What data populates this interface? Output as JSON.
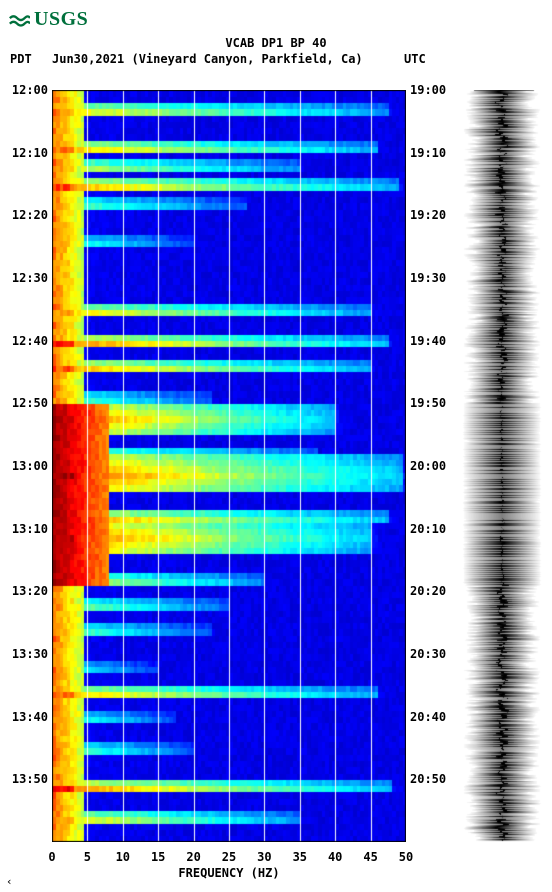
{
  "logo": {
    "text": "USGS",
    "color": "#00703c"
  },
  "title": "VCAB DP1 BP 40",
  "subtitle": {
    "pdt_label": "PDT",
    "date_text": "Jun30,2021 (Vineyard Canyon, Parkfield, Ca)",
    "utc_label": "UTC"
  },
  "spectrogram": {
    "type": "spectrogram",
    "xlabel": "FREQUENCY (HZ)",
    "xlim": [
      0,
      50
    ],
    "xticks": [
      0,
      5,
      10,
      15,
      20,
      25,
      30,
      35,
      40,
      45,
      50
    ],
    "left_ticks": [
      "12:00",
      "12:10",
      "12:20",
      "12:30",
      "12:40",
      "12:50",
      "13:00",
      "13:10",
      "13:20",
      "13:30",
      "13:40",
      "13:50"
    ],
    "right_ticks": [
      "19:00",
      "19:10",
      "19:20",
      "19:30",
      "19:40",
      "19:50",
      "20:00",
      "20:10",
      "20:20",
      "20:30",
      "20:40",
      "20:50"
    ],
    "time_rows": 120,
    "grid_color": "#ffffff",
    "background_color": "#0000aa",
    "colormap": {
      "stops": [
        [
          0.0,
          "#000080"
        ],
        [
          0.15,
          "#0000ff"
        ],
        [
          0.3,
          "#0080ff"
        ],
        [
          0.45,
          "#00ffff"
        ],
        [
          0.6,
          "#80ff80"
        ],
        [
          0.72,
          "#ffff00"
        ],
        [
          0.85,
          "#ff8000"
        ],
        [
          0.92,
          "#ff0000"
        ],
        [
          1.0,
          "#800000"
        ]
      ]
    },
    "events": [
      {
        "row": 3,
        "intensity": 0.8,
        "reach": 0.95
      },
      {
        "row": 9,
        "intensity": 0.85,
        "reach": 0.92
      },
      {
        "row": 12,
        "intensity": 0.75,
        "reach": 0.7
      },
      {
        "row": 15,
        "intensity": 0.88,
        "reach": 0.98
      },
      {
        "row": 18,
        "intensity": 0.6,
        "reach": 0.55
      },
      {
        "row": 24,
        "intensity": 0.55,
        "reach": 0.4
      },
      {
        "row": 35,
        "intensity": 0.82,
        "reach": 0.9
      },
      {
        "row": 40,
        "intensity": 0.92,
        "reach": 0.95
      },
      {
        "row": 44,
        "intensity": 0.88,
        "reach": 0.9
      },
      {
        "row": 49,
        "intensity": 0.6,
        "reach": 0.45
      },
      {
        "row": 52,
        "intensity": 0.95,
        "reach": 0.8,
        "thick": 5
      },
      {
        "row": 58,
        "intensity": 0.75,
        "reach": 0.75
      },
      {
        "row": 61,
        "intensity": 0.98,
        "reach": 0.99,
        "thick": 6
      },
      {
        "row": 68,
        "intensity": 0.92,
        "reach": 0.95
      },
      {
        "row": 71,
        "intensity": 0.96,
        "reach": 0.9,
        "thick": 6
      },
      {
        "row": 78,
        "intensity": 0.75,
        "reach": 0.6
      },
      {
        "row": 82,
        "intensity": 0.65,
        "reach": 0.5
      },
      {
        "row": 86,
        "intensity": 0.6,
        "reach": 0.45
      },
      {
        "row": 92,
        "intensity": 0.5,
        "reach": 0.3
      },
      {
        "row": 96,
        "intensity": 0.85,
        "reach": 0.92
      },
      {
        "row": 100,
        "intensity": 0.55,
        "reach": 0.35
      },
      {
        "row": 105,
        "intensity": 0.6,
        "reach": 0.4
      },
      {
        "row": 111,
        "intensity": 0.92,
        "reach": 0.96
      },
      {
        "row": 116,
        "intensity": 0.8,
        "reach": 0.7
      }
    ],
    "low_freq_band": {
      "comment": "persistent high-amplitude low-frequency band ~0-4 Hz",
      "width_hz": 4.5,
      "base_intensity": 0.85,
      "dense_regions": [
        {
          "row_start": 50,
          "row_end": 78,
          "width_hz": 8,
          "intensity": 0.98
        }
      ]
    }
  },
  "seismogram": {
    "type": "waveform",
    "color": "#000000",
    "baseline_amp": 0.05,
    "samples_per_row": 1,
    "events_linked_to_spectrogram": true,
    "extra_noise_region": {
      "row_start": 55,
      "row_end": 80,
      "amp": 0.55
    }
  },
  "footer_mark": "‹"
}
